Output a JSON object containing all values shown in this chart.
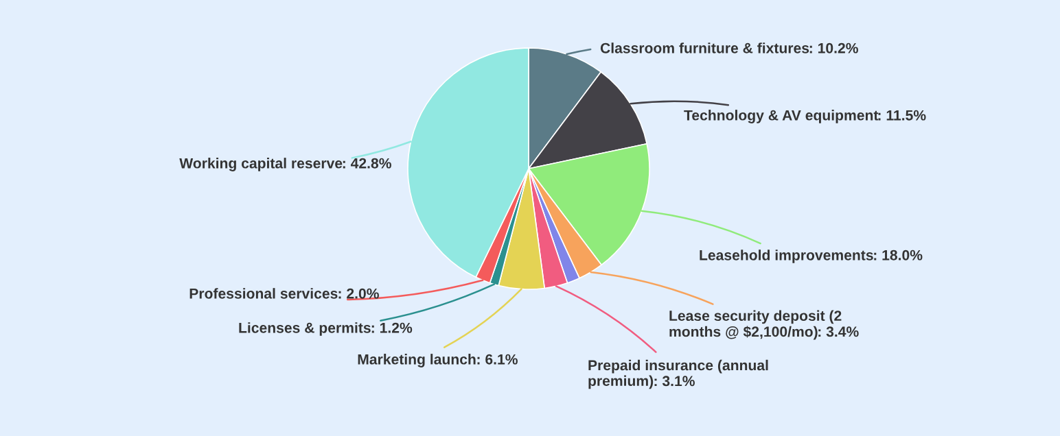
{
  "chart_data": {
    "type": "pie",
    "categories": [
      "Classroom furniture & fixtures",
      "Technology & AV equipment",
      "Leasehold improvements",
      "Lease security deposit (2 months @ $2,100/mo)",
      null,
      "Prepaid insurance (annual premium)",
      "Marketing launch",
      "Licenses & permits",
      "Professional services",
      "Working capital reserve"
    ],
    "values": [
      10.2,
      11.5,
      18.0,
      3.4,
      1.7,
      3.1,
      6.1,
      1.2,
      2.0,
      42.8
    ],
    "colors": [
      "#5b7b87",
      "#434147",
      "#90eb7b",
      "#f7a35c",
      "#8085e9",
      "#f15c80",
      "#e4d354",
      "#2b908f",
      "#f45b5b",
      "#91e8e1"
    ],
    "value_labels": [
      ": 10.2%",
      ": 11.5%",
      ": 18.0%",
      ": 3.4%",
      null,
      ": 3.1%",
      ": 6.1%",
      ": 1.2%",
      ": 2.0%",
      ": 42.8%"
    ]
  }
}
